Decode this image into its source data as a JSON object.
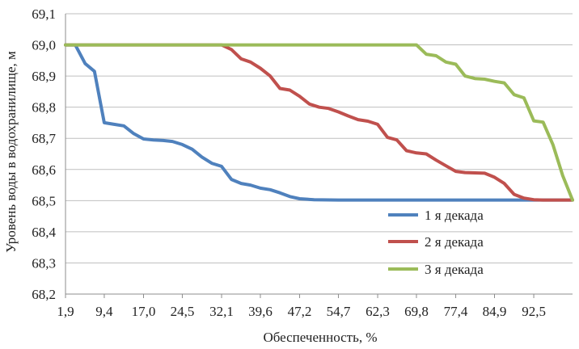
{
  "chart_data": {
    "type": "line",
    "xlabel": "Обеспеченность, %",
    "ylabel": "Уровень воды в водохранилище, м",
    "ylim": [
      68.2,
      69.1
    ],
    "yticks": [
      "68,2",
      "68,3",
      "68,4",
      "68,5",
      "68,6",
      "68,7",
      "68,8",
      "68,9",
      "69,0",
      "69,1"
    ],
    "xlim": [
      1.9,
      100
    ],
    "xticks": [
      "1,9",
      "9,4",
      "17,0",
      "24,5",
      "32,1",
      "39,6",
      "47,2",
      "54,7",
      "62,3",
      "69,8",
      "77,4",
      "84,9",
      "92,5"
    ],
    "grid": true,
    "legend_position": "bottom-right",
    "series": [
      {
        "name": "1 я декада",
        "color": "#4f81bd",
        "points": [
          [
            1.9,
            69.0
          ],
          [
            3.8,
            69.0
          ],
          [
            5.7,
            68.94
          ],
          [
            7.5,
            68.915
          ],
          [
            9.4,
            68.75
          ],
          [
            11.3,
            68.745
          ],
          [
            13.2,
            68.74
          ],
          [
            15.1,
            68.715
          ],
          [
            17.0,
            68.698
          ],
          [
            18.9,
            68.695
          ],
          [
            20.8,
            68.693
          ],
          [
            22.6,
            68.69
          ],
          [
            24.5,
            68.68
          ],
          [
            26.4,
            68.665
          ],
          [
            28.3,
            68.64
          ],
          [
            30.2,
            68.62
          ],
          [
            32.1,
            68.61
          ],
          [
            34.0,
            68.568
          ],
          [
            35.9,
            68.555
          ],
          [
            37.7,
            68.55
          ],
          [
            39.6,
            68.54
          ],
          [
            41.5,
            68.535
          ],
          [
            43.4,
            68.525
          ],
          [
            45.3,
            68.513
          ],
          [
            47.2,
            68.506
          ],
          [
            50.0,
            68.503
          ],
          [
            54.7,
            68.502
          ],
          [
            62.3,
            68.502
          ],
          [
            69.8,
            68.502
          ],
          [
            77.4,
            68.502
          ],
          [
            84.9,
            68.502
          ],
          [
            92.5,
            68.502
          ],
          [
            100.0,
            68.502
          ]
        ]
      },
      {
        "name": "2 я декада",
        "color": "#c0504d",
        "points": [
          [
            1.9,
            69.0
          ],
          [
            32.1,
            69.0
          ],
          [
            34.0,
            68.985
          ],
          [
            35.9,
            68.955
          ],
          [
            37.7,
            68.945
          ],
          [
            39.6,
            68.925
          ],
          [
            41.5,
            68.9
          ],
          [
            43.4,
            68.86
          ],
          [
            45.3,
            68.855
          ],
          [
            47.2,
            68.835
          ],
          [
            49.1,
            68.81
          ],
          [
            51.0,
            68.8
          ],
          [
            52.8,
            68.796
          ],
          [
            54.7,
            68.785
          ],
          [
            56.6,
            68.772
          ],
          [
            58.5,
            68.76
          ],
          [
            60.4,
            68.755
          ],
          [
            62.3,
            68.745
          ],
          [
            64.2,
            68.703
          ],
          [
            66.0,
            68.695
          ],
          [
            67.9,
            68.66
          ],
          [
            69.8,
            68.653
          ],
          [
            71.7,
            68.65
          ],
          [
            73.6,
            68.63
          ],
          [
            75.5,
            68.612
          ],
          [
            77.4,
            68.594
          ],
          [
            79.2,
            68.59
          ],
          [
            81.1,
            68.589
          ],
          [
            83.0,
            68.588
          ],
          [
            84.9,
            68.575
          ],
          [
            86.8,
            68.555
          ],
          [
            88.7,
            68.52
          ],
          [
            90.6,
            68.508
          ],
          [
            92.5,
            68.503
          ],
          [
            94.3,
            68.502
          ],
          [
            96.2,
            68.502
          ],
          [
            100.0,
            68.502
          ]
        ]
      },
      {
        "name": "3 я декада",
        "color": "#9bbb59",
        "points": [
          [
            1.9,
            69.0
          ],
          [
            62.3,
            69.0
          ],
          [
            69.8,
            69.0
          ],
          [
            71.7,
            68.97
          ],
          [
            73.6,
            68.965
          ],
          [
            75.5,
            68.945
          ],
          [
            77.4,
            68.938
          ],
          [
            79.2,
            68.9
          ],
          [
            81.1,
            68.892
          ],
          [
            83.0,
            68.89
          ],
          [
            84.9,
            68.883
          ],
          [
            86.8,
            68.878
          ],
          [
            88.7,
            68.84
          ],
          [
            90.6,
            68.83
          ],
          [
            92.5,
            68.756
          ],
          [
            94.3,
            68.752
          ],
          [
            96.2,
            68.68
          ],
          [
            98.1,
            68.58
          ],
          [
            100.0,
            68.502
          ]
        ]
      }
    ]
  }
}
